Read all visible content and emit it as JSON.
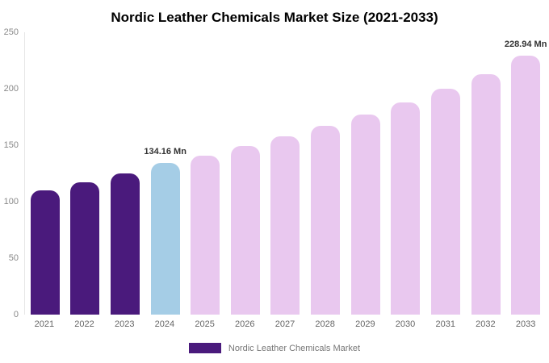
{
  "title": "Nordic Leather Chemicals Market Size (2021-2033)",
  "legend": {
    "label": "Nordic Leather Chemicals Market",
    "swatch_color": "#4a1a7c"
  },
  "colors": {
    "historical_bar": "#4a1a7c",
    "base_year_bar": "#a5cde6",
    "forecast_bar": "#e9c8ef",
    "axis_text": "#888888",
    "annotation_text": "#333333"
  },
  "chart_data": {
    "type": "bar",
    "title": "Nordic Leather Chemicals Market Size (2021-2033)",
    "xlabel": "",
    "ylabel": "",
    "ylim": [
      0,
      250
    ],
    "yticks": [
      0,
      50,
      100,
      150,
      200,
      250
    ],
    "grid": false,
    "legend_position": "bottom",
    "categories": [
      "2021",
      "2022",
      "2023",
      "2024",
      "2025",
      "2026",
      "2027",
      "2028",
      "2029",
      "2030",
      "2031",
      "2032",
      "2033"
    ],
    "values": [
      110,
      117,
      125,
      134.16,
      141,
      149,
      158,
      167,
      177,
      188,
      200,
      213,
      228.94
    ],
    "bar_colors": [
      "#4a1a7c",
      "#4a1a7c",
      "#4a1a7c",
      "#a5cde6",
      "#e9c8ef",
      "#e9c8ef",
      "#e9c8ef",
      "#e9c8ef",
      "#e9c8ef",
      "#e9c8ef",
      "#e9c8ef",
      "#e9c8ef",
      "#e9c8ef"
    ],
    "annotations": [
      {
        "category": "2024",
        "text": "134.16 Mn"
      },
      {
        "category": "2033",
        "text": "228.94 Mn"
      }
    ]
  }
}
